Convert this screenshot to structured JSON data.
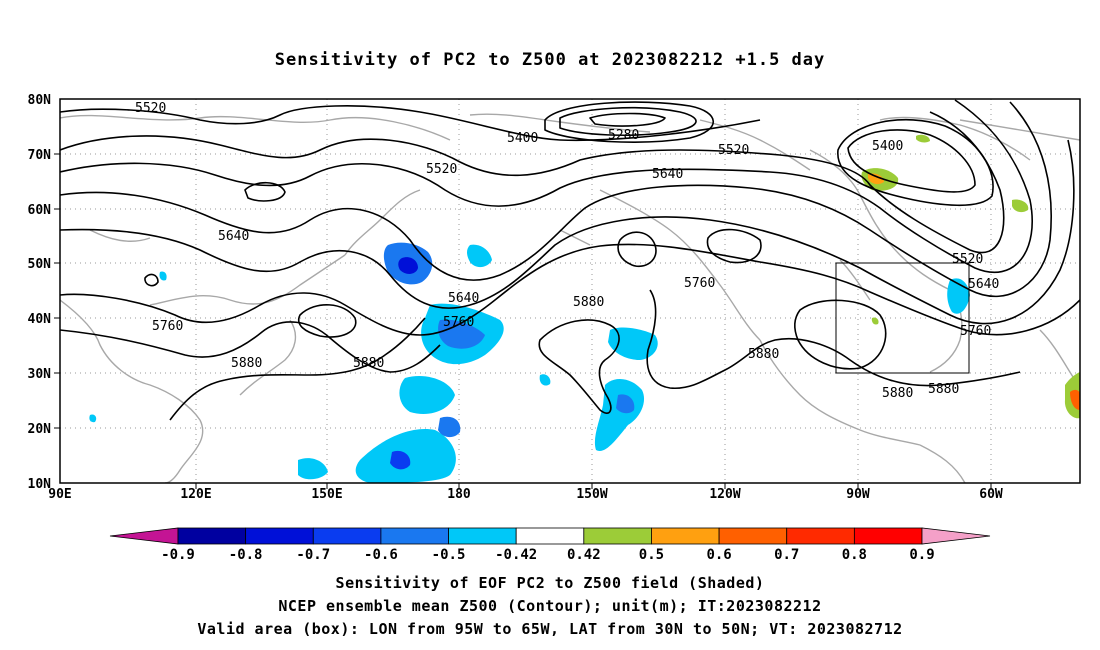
{
  "title": "Sensitivity of PC2 to Z500 at 2023082212 +1.5 day",
  "map": {
    "lat_labels": [
      "80N",
      "70N",
      "60N",
      "50N",
      "40N",
      "30N",
      "20N",
      "10N"
    ],
    "lon_labels": [
      "90E",
      "120E",
      "150E",
      "180",
      "150W",
      "120W",
      "90W",
      "60W"
    ],
    "contour_labels": [
      "5520",
      "5400",
      "5280",
      "5520",
      "5400",
      "5520",
      "5640",
      "5640",
      "5640",
      "5760",
      "5520",
      "5640",
      "5760",
      "5880",
      "5760",
      "5880",
      "5760",
      "5880",
      "5880",
      "5880",
      "5880"
    ],
    "valid_box": {
      "lon_from": "95W",
      "lon_to": "65W",
      "lat_from": "30N",
      "lat_to": "50N"
    }
  },
  "colorbar": {
    "labels": [
      "-0.9",
      "-0.8",
      "-0.7",
      "-0.6",
      "-0.5",
      "-0.42",
      "0.42",
      "0.5",
      "0.6",
      "0.7",
      "0.8",
      "0.9"
    ],
    "colors": [
      "#c41494",
      "#0000a0",
      "#0010d8",
      "#0a3cf0",
      "#1a78f0",
      "#00c8f8",
      "#ffffff",
      "#9ccc38",
      "#ffa010",
      "#ff6000",
      "#ff2a00",
      "#ff0000",
      "#f4a0c8"
    ]
  },
  "captions": [
    "Sensitivity of EOF PC2 to Z500 field (Shaded)",
    "NCEP ensemble mean Z500 (Contour); unit(m); IT:2023082212",
    "Valid area (box): LON from 95W to 65W, LAT from 30N to 50N; VT: 2023082712"
  ]
}
